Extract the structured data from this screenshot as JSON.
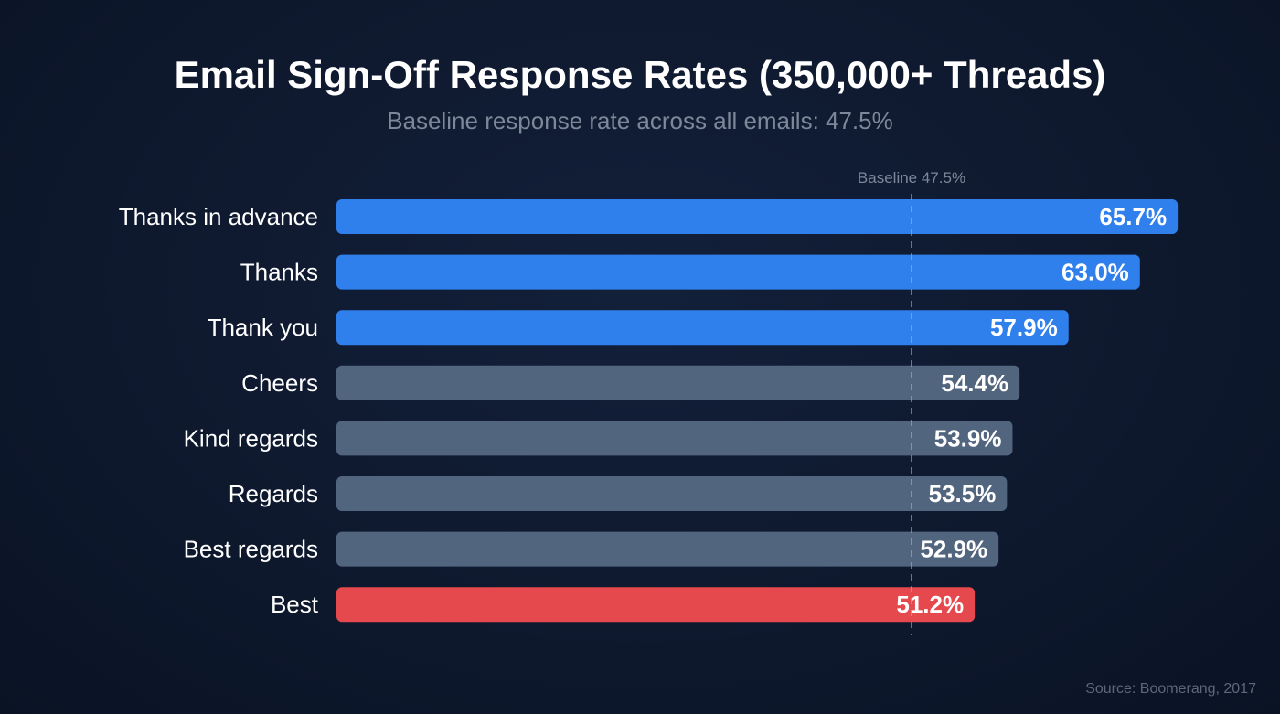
{
  "chart_data": {
    "type": "bar",
    "orientation": "horizontal",
    "title": "Email Sign-Off Response Rates (350,000+ Threads)",
    "subtitle": "Baseline response rate across all emails: 47.5%",
    "categories": [
      "Thanks in advance",
      "Thanks",
      "Thank you",
      "Cheers",
      "Kind regards",
      "Regards",
      "Best regards",
      "Best"
    ],
    "values": [
      65.7,
      63.0,
      57.9,
      54.4,
      53.9,
      53.5,
      52.9,
      51.2
    ],
    "data_labels": [
      "65.7%",
      "63.0%",
      "57.9%",
      "54.4%",
      "53.9%",
      "53.5%",
      "52.9%",
      "51.2%"
    ],
    "bar_colors": [
      "#2f80ed",
      "#2f80ed",
      "#2f80ed",
      "#52657f",
      "#52657f",
      "#52657f",
      "#52657f",
      "#e5484d"
    ],
    "baseline": {
      "value": 47.5,
      "label": "Baseline 47.5%",
      "style": "dashed"
    },
    "unit": "%",
    "grid": false,
    "legend": "none",
    "source": "Source: Boomerang, 2017"
  }
}
